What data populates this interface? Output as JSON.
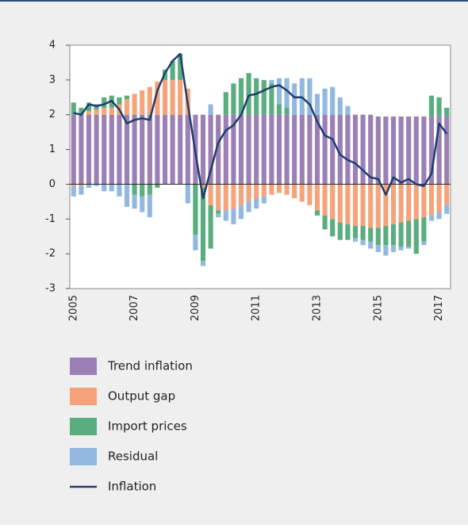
{
  "chart_data": {
    "type": "bar",
    "stacked": true,
    "categories": [
      "2005",
      null,
      null,
      null,
      null,
      null,
      null,
      null,
      "2007",
      null,
      null,
      null,
      null,
      null,
      null,
      null,
      "2009",
      null,
      null,
      null,
      null,
      null,
      null,
      null,
      "2011",
      null,
      null,
      null,
      null,
      null,
      null,
      null,
      "2013",
      null,
      null,
      null,
      null,
      null,
      null,
      null,
      "2015",
      null,
      null,
      null,
      null,
      null,
      null,
      null,
      "2017",
      null
    ],
    "ylim": [
      -3,
      4
    ],
    "yticks": [
      -3,
      -2,
      -1,
      0,
      1,
      2,
      3,
      4
    ],
    "series": [
      {
        "name": "Trend inflation",
        "type": "bar",
        "color": "#9b7fb5",
        "values": [
          2,
          2,
          2,
          2,
          2,
          2,
          2,
          2,
          2,
          2,
          2,
          2,
          2,
          2,
          2,
          2,
          2,
          2,
          2,
          2,
          2,
          2,
          2,
          2,
          2,
          2,
          2,
          2,
          2,
          2,
          2,
          2,
          2,
          2,
          2,
          2,
          2,
          2,
          2,
          2,
          1.95,
          1.95,
          1.95,
          1.95,
          1.95,
          1.95,
          1.95,
          1.95,
          1.95,
          1.95
        ]
      },
      {
        "name": "Output gap",
        "type": "bar",
        "color": "#f4a37a",
        "values": [
          -0.05,
          -0.05,
          0.1,
          0.15,
          0.2,
          0.2,
          0.3,
          0.45,
          0.6,
          0.7,
          0.8,
          0.95,
          1.0,
          1.0,
          1.0,
          0.75,
          0,
          -0.1,
          -0.6,
          -0.75,
          -0.75,
          -0.7,
          -0.6,
          -0.5,
          -0.4,
          -0.35,
          -0.3,
          -0.25,
          -0.3,
          -0.4,
          -0.5,
          -0.6,
          -0.75,
          -0.9,
          -1.0,
          -1.1,
          -1.15,
          -1.2,
          -1.2,
          -1.25,
          -1.25,
          -1.2,
          -1.15,
          -1.1,
          -1.05,
          -1.0,
          -0.95,
          -0.9,
          -0.8,
          -0.6
        ]
      },
      {
        "name": "Import prices",
        "type": "bar",
        "color": "#5aad7e",
        "values": [
          0.35,
          0.2,
          0.25,
          0.15,
          0.3,
          0.35,
          0.2,
          0.1,
          -0.3,
          -0.35,
          -0.3,
          -0.1,
          0.3,
          0.55,
          0.75,
          0,
          -1.45,
          -2.1,
          -1.25,
          -0.1,
          0.65,
          0.9,
          1.05,
          1.2,
          1.05,
          1.0,
          0.9,
          0.3,
          0.2,
          0,
          0,
          0,
          -0.15,
          -0.4,
          -0.5,
          -0.5,
          -0.45,
          -0.35,
          -0.4,
          -0.4,
          -0.5,
          -0.55,
          -0.6,
          -0.7,
          -0.75,
          -1.0,
          -0.7,
          0.6,
          0.55,
          0.25
        ]
      },
      {
        "name": "Residual",
        "type": "bar",
        "color": "#92b8e0",
        "values": [
          -0.3,
          -0.25,
          -0.1,
          -0.05,
          -0.2,
          -0.2,
          -0.35,
          -0.65,
          -0.4,
          -0.45,
          -0.65,
          0,
          0,
          0,
          0,
          -0.55,
          -0.45,
          -0.15,
          0.3,
          -0.1,
          -0.3,
          -0.45,
          -0.4,
          -0.3,
          -0.3,
          -0.2,
          0.1,
          0.75,
          0.85,
          0.9,
          1.05,
          1.05,
          0.6,
          0.75,
          0.8,
          0.5,
          0.25,
          -0.1,
          -0.15,
          -0.2,
          -0.2,
          -0.3,
          -0.2,
          -0.1,
          -0.05,
          0,
          -0.1,
          -0.15,
          -0.2,
          -0.25
        ]
      },
      {
        "name": "Inflation",
        "type": "line",
        "color": "#1f3d6e",
        "values": [
          2.05,
          2.0,
          2.3,
          2.25,
          2.3,
          2.4,
          2.15,
          1.75,
          1.85,
          1.9,
          1.85,
          2.7,
          3.2,
          3.55,
          3.75,
          2.3,
          0.9,
          -0.4,
          0.4,
          1.2,
          1.55,
          1.7,
          2.0,
          2.55,
          2.6,
          2.7,
          2.8,
          2.85,
          2.7,
          2.5,
          2.5,
          2.3,
          1.8,
          1.4,
          1.3,
          0.85,
          0.7,
          0.6,
          0.4,
          0.2,
          0.15,
          -0.3,
          0.2,
          0.05,
          0.15,
          0,
          -0.05,
          0.3,
          1.75,
          1.45
        ]
      }
    ]
  }
}
